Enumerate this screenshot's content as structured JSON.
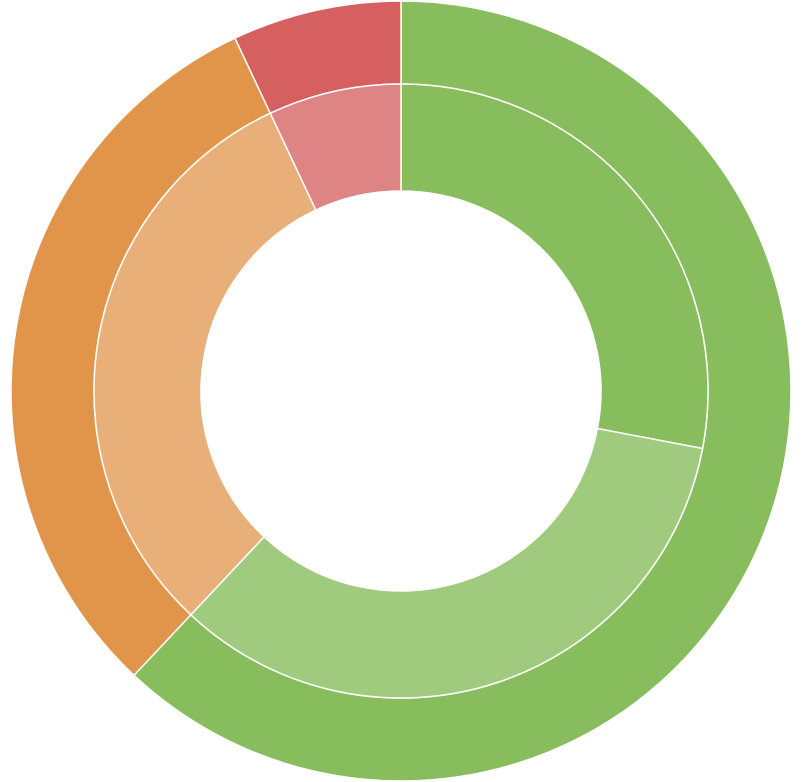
{
  "chart_data": {
    "type": "doughnut",
    "series": [
      {
        "values": [
          62,
          31,
          7
        ],
        "colors": [
          "#87bd5d",
          "#e0954b",
          "#d66060"
        ]
      },
      {
        "values": [
          28,
          34,
          31,
          7
        ],
        "colors": [
          "#87bd5d",
          "#a0cb7e",
          "#e8af78",
          "#df8484"
        ]
      }
    ]
  }
}
